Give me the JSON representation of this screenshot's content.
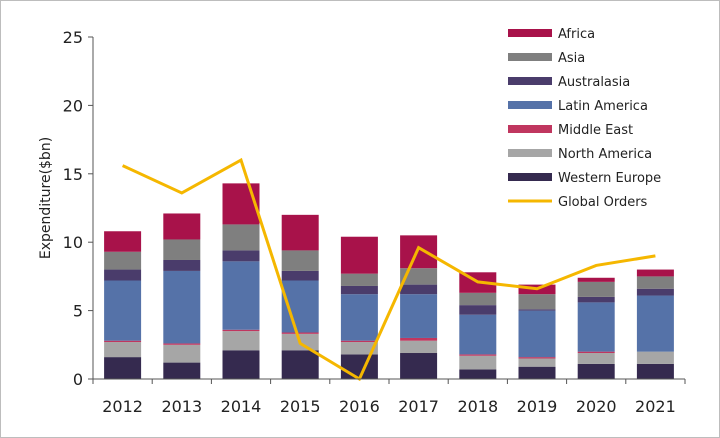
{
  "chart_data": {
    "type": "bar",
    "stacked": true,
    "title": "",
    "xlabel": "",
    "ylabel": "Expenditure($bn)",
    "ylim": [
      0,
      25
    ],
    "yticks": [
      0,
      5,
      10,
      15,
      20,
      25
    ],
    "grid": false,
    "legend_position": "top-right",
    "categories": [
      "2012",
      "2013",
      "2014",
      "2015",
      "2016",
      "2017",
      "2018",
      "2019",
      "2020",
      "2021"
    ],
    "series": [
      {
        "name": "Western Europe",
        "color": "#352a4f",
        "values": [
          1.6,
          1.2,
          2.1,
          2.1,
          1.8,
          1.9,
          0.7,
          0.9,
          1.1,
          1.1
        ]
      },
      {
        "name": "North America",
        "color": "#a6a6a6",
        "values": [
          1.1,
          1.3,
          1.4,
          1.2,
          0.9,
          0.9,
          1.0,
          0.6,
          0.8,
          0.9
        ]
      },
      {
        "name": "Middle East",
        "color": "#c0365f",
        "values": [
          0.1,
          0.1,
          0.1,
          0.1,
          0.1,
          0.2,
          0.1,
          0.1,
          0.1,
          0.0
        ]
      },
      {
        "name": "Latin America",
        "color": "#5572a8",
        "values": [
          4.4,
          5.3,
          5.0,
          3.8,
          3.4,
          3.2,
          2.9,
          3.4,
          3.6,
          4.1
        ]
      },
      {
        "name": "Australasia",
        "color": "#4a3c6b",
        "values": [
          0.8,
          0.8,
          0.8,
          0.7,
          0.6,
          0.7,
          0.7,
          0.1,
          0.4,
          0.5
        ]
      },
      {
        "name": "Asia",
        "color": "#7f7f7f",
        "values": [
          1.3,
          1.5,
          1.9,
          1.5,
          0.9,
          1.2,
          0.9,
          1.1,
          1.1,
          0.9
        ]
      },
      {
        "name": "Africa",
        "color": "#a8124a",
        "values": [
          1.5,
          1.9,
          3.0,
          2.6,
          2.7,
          2.4,
          1.5,
          0.7,
          0.3,
          0.5
        ]
      }
    ],
    "line_series": {
      "name": "Global Orders",
      "color": "#f5b700",
      "values": [
        15.6,
        13.6,
        16.0,
        2.6,
        0.0,
        9.6,
        7.1,
        6.6,
        8.3,
        9.0
      ]
    },
    "legend": [
      "Africa",
      "Asia",
      "Australasia",
      "Latin America",
      "Middle East",
      "North America",
      "Western Europe",
      "Global Orders"
    ]
  }
}
